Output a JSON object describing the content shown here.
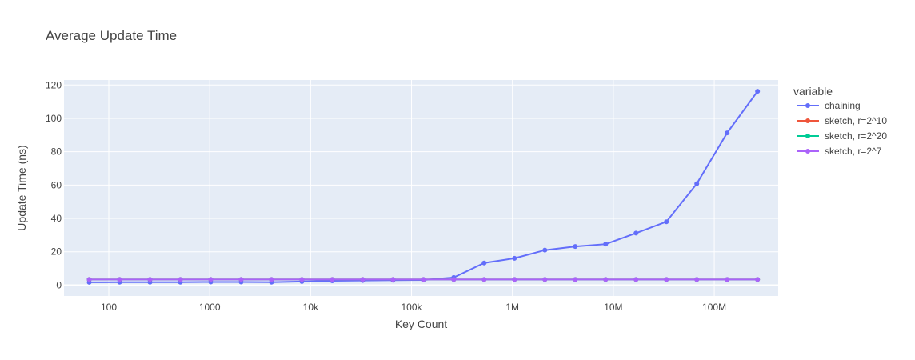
{
  "chart_data": {
    "type": "line",
    "title": "Average Update Time",
    "xlabel": "Key Count",
    "ylabel": "Update Time (ns)",
    "x_scale": "log",
    "xlim": [
      36,
      430000000
    ],
    "ylim": [
      -6.5,
      123
    ],
    "x_ticks": [
      {
        "value": 100,
        "label": "100"
      },
      {
        "value": 1000,
        "label": "1000"
      },
      {
        "value": 10000,
        "label": "10k"
      },
      {
        "value": 100000,
        "label": "100k"
      },
      {
        "value": 1000000,
        "label": "1M"
      },
      {
        "value": 10000000,
        "label": "10M"
      },
      {
        "value": 100000000,
        "label": "100M"
      }
    ],
    "y_ticks": [
      0,
      20,
      40,
      60,
      80,
      100,
      120
    ],
    "grid": true,
    "legend_title": "variable",
    "legend_position": "right",
    "x": [
      64,
      128,
      256,
      512,
      1024,
      2048,
      4096,
      8192,
      16384,
      32768,
      65536,
      131072,
      262144,
      524288,
      1048576,
      2097152,
      4194304,
      8388608,
      16777216,
      33554432,
      67108864,
      134217728,
      268435456
    ],
    "series": [
      {
        "name": "chaining",
        "color": "#636efa",
        "values": [
          1.7,
          1.8,
          1.8,
          1.8,
          1.9,
          1.9,
          1.8,
          2.2,
          2.6,
          2.8,
          3.0,
          3.1,
          4.6,
          13.3,
          16.1,
          21.0,
          23.2,
          24.6,
          31.2,
          38.0,
          60.8,
          91.3,
          116.2
        ]
      },
      {
        "name": "sketch, r=2^10",
        "color": "#ef553b",
        "values": [
          3.4,
          3.4,
          3.4,
          3.4,
          3.4,
          3.4,
          3.4,
          3.4,
          3.4,
          3.4,
          3.4,
          3.4,
          3.4,
          3.4,
          3.4,
          3.4,
          3.4,
          3.4,
          3.4,
          3.4,
          3.4,
          3.4,
          3.4
        ]
      },
      {
        "name": "sketch, r=2^20",
        "color": "#00cc96",
        "values": [
          3.4,
          3.4,
          3.4,
          3.4,
          3.4,
          3.4,
          3.4,
          3.4,
          3.4,
          3.4,
          3.4,
          3.4,
          3.4,
          3.4,
          3.4,
          3.4,
          3.4,
          3.4,
          3.4,
          3.4,
          3.4,
          3.4,
          3.4
        ]
      },
      {
        "name": "sketch, r=2^7",
        "color": "#ab63fa",
        "values": [
          3.4,
          3.4,
          3.4,
          3.4,
          3.4,
          3.4,
          3.4,
          3.4,
          3.4,
          3.4,
          3.4,
          3.4,
          3.4,
          3.4,
          3.4,
          3.4,
          3.4,
          3.4,
          3.4,
          3.4,
          3.4,
          3.4,
          3.4
        ]
      }
    ]
  }
}
